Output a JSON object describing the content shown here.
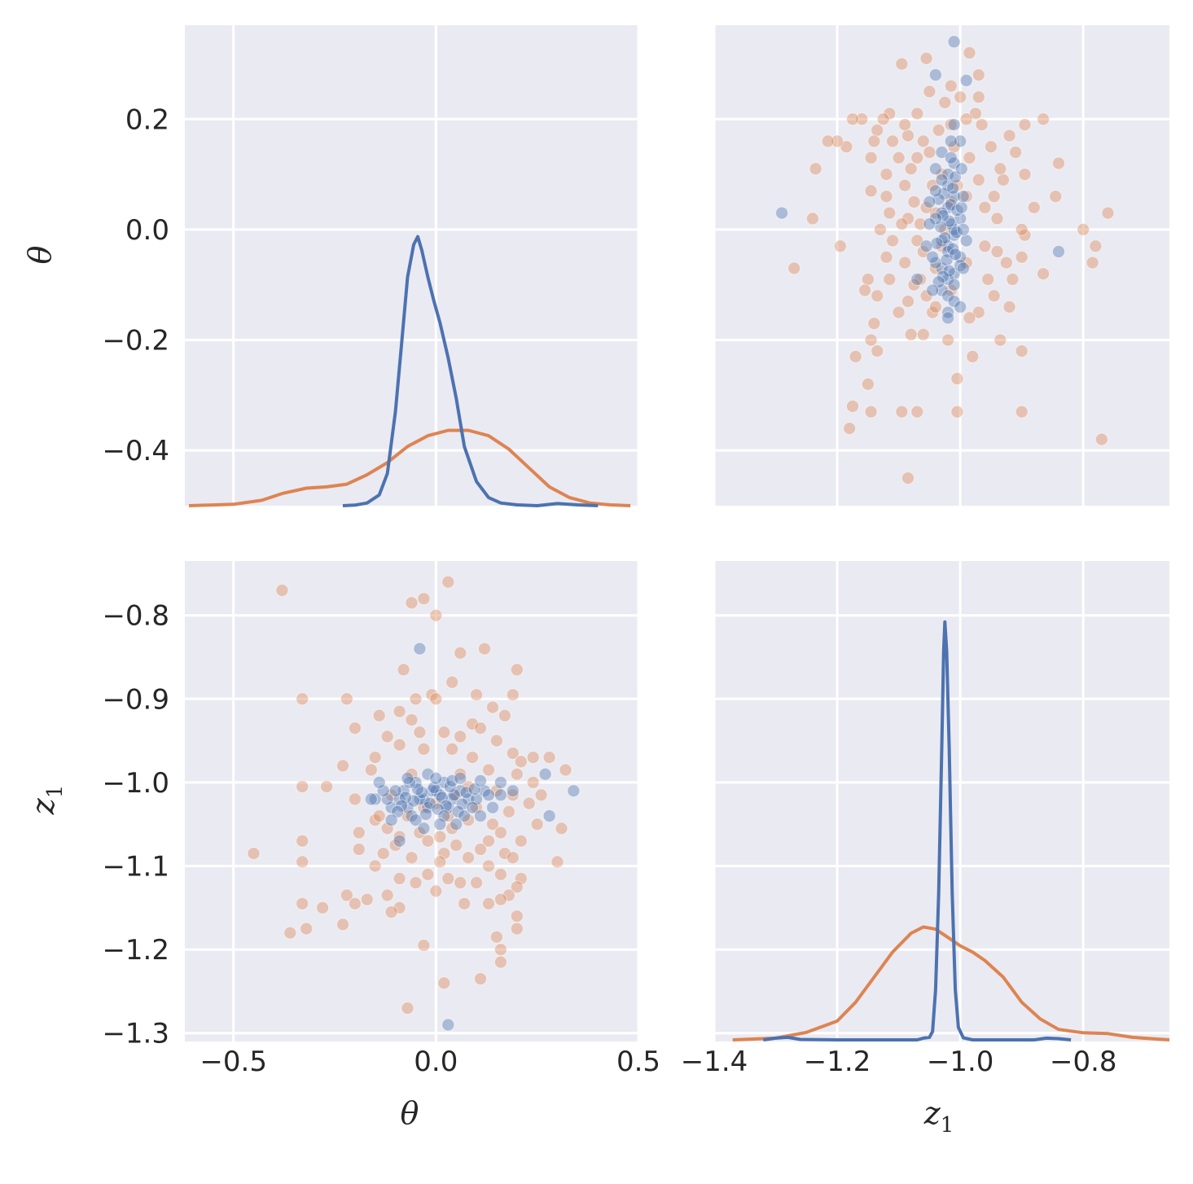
{
  "chart_data": {
    "type": "pairplot",
    "variables": [
      "θ",
      "z1"
    ],
    "axis_labels": {
      "theta": {
        "main": "θ",
        "sub": ""
      },
      "z1": {
        "main": "z",
        "sub": "1"
      }
    },
    "theta_ticks": [
      "−0.5",
      "0.0",
      "0.5"
    ],
    "theta_y_ticks": [
      "0.2",
      "0.0",
      "−0.2",
      "−0.4"
    ],
    "z1_ticks": [
      "−1.4",
      "−1.2",
      "−1.0",
      "−0.8"
    ],
    "z1_y_ticks": [
      "−0.8",
      "−0.9",
      "−1.0",
      "−1.1",
      "−1.2",
      "−1.3"
    ],
    "ranges": {
      "theta": [
        -0.62,
        0.5
      ],
      "theta_y": [
        -0.5,
        0.37
      ],
      "z1": [
        -1.4,
        -0.66
      ],
      "z1_y": [
        -1.31,
        -0.735
      ]
    },
    "grid": true,
    "colors": {
      "series_blue": "#4c72b0",
      "series_orange": "#dd8452",
      "background": "#eaeaf2"
    },
    "kde_theta": {
      "blue": [
        [
          -0.23,
          0
        ],
        [
          -0.2,
          0.002
        ],
        [
          -0.17,
          0.01
        ],
        [
          -0.14,
          0.04
        ],
        [
          -0.12,
          0.12
        ],
        [
          -0.1,
          0.35
        ],
        [
          -0.085,
          0.6
        ],
        [
          -0.07,
          0.85
        ],
        [
          -0.055,
          0.97
        ],
        [
          -0.045,
          1.0
        ],
        [
          -0.035,
          0.95
        ],
        [
          -0.02,
          0.85
        ],
        [
          -0.005,
          0.76
        ],
        [
          0.01,
          0.68
        ],
        [
          0.03,
          0.55
        ],
        [
          0.05,
          0.4
        ],
        [
          0.07,
          0.22
        ],
        [
          0.1,
          0.09
        ],
        [
          0.13,
          0.03
        ],
        [
          0.16,
          0.01
        ],
        [
          0.2,
          0.003
        ],
        [
          0.25,
          0
        ],
        [
          0.3,
          0.008
        ],
        [
          0.35,
          0.003
        ],
        [
          0.4,
          0
        ]
      ],
      "orange": [
        [
          -0.61,
          0
        ],
        [
          -0.5,
          0.005
        ],
        [
          -0.43,
          0.02
        ],
        [
          -0.38,
          0.045
        ],
        [
          -0.32,
          0.065
        ],
        [
          -0.27,
          0.07
        ],
        [
          -0.22,
          0.08
        ],
        [
          -0.17,
          0.115
        ],
        [
          -0.12,
          0.16
        ],
        [
          -0.07,
          0.22
        ],
        [
          -0.02,
          0.26
        ],
        [
          0.03,
          0.28
        ],
        [
          0.08,
          0.28
        ],
        [
          0.13,
          0.26
        ],
        [
          0.18,
          0.21
        ],
        [
          0.23,
          0.14
        ],
        [
          0.28,
          0.07
        ],
        [
          0.33,
          0.03
        ],
        [
          0.38,
          0.01
        ],
        [
          0.43,
          0.003
        ],
        [
          0.48,
          0
        ]
      ]
    },
    "kde_z1": {
      "blue": [
        [
          -1.32,
          0
        ],
        [
          -1.3,
          0.004
        ],
        [
          -1.28,
          0.006
        ],
        [
          -1.26,
          0.001
        ],
        [
          -1.2,
          0
        ],
        [
          -1.07,
          0
        ],
        [
          -1.06,
          0.004
        ],
        [
          -1.05,
          0.006
        ],
        [
          -1.045,
          0.02
        ],
        [
          -1.04,
          0.12
        ],
        [
          -1.035,
          0.35
        ],
        [
          -1.03,
          0.7
        ],
        [
          -1.027,
          0.93
        ],
        [
          -1.025,
          1.0
        ],
        [
          -1.022,
          0.93
        ],
        [
          -1.018,
          0.7
        ],
        [
          -1.013,
          0.35
        ],
        [
          -1.008,
          0.12
        ],
        [
          -1.003,
          0.03
        ],
        [
          -0.995,
          0.005
        ],
        [
          -0.98,
          0
        ],
        [
          -0.88,
          0
        ],
        [
          -0.86,
          0.004
        ],
        [
          -0.84,
          0.003
        ],
        [
          -0.82,
          0
        ]
      ],
      "orange": [
        [
          -1.37,
          0
        ],
        [
          -1.3,
          0.004
        ],
        [
          -1.25,
          0.018
        ],
        [
          -1.2,
          0.045
        ],
        [
          -1.17,
          0.09
        ],
        [
          -1.14,
          0.15
        ],
        [
          -1.11,
          0.21
        ],
        [
          -1.08,
          0.255
        ],
        [
          -1.06,
          0.27
        ],
        [
          -1.04,
          0.265
        ],
        [
          -1.02,
          0.245
        ],
        [
          -1.0,
          0.225
        ],
        [
          -0.98,
          0.21
        ],
        [
          -0.96,
          0.19
        ],
        [
          -0.93,
          0.15
        ],
        [
          -0.9,
          0.09
        ],
        [
          -0.87,
          0.05
        ],
        [
          -0.84,
          0.025
        ],
        [
          -0.8,
          0.017
        ],
        [
          -0.76,
          0.015
        ],
        [
          -0.72,
          0.006
        ],
        [
          -0.68,
          0.002
        ],
        [
          -0.66,
          0
        ]
      ]
    },
    "points_blue": [
      [
        -0.05,
        -1.0
      ],
      [
        -0.07,
        -1.03
      ],
      [
        -0.03,
        -1.02
      ],
      [
        -0.01,
        -1.01
      ],
      [
        0.02,
        -1.0
      ],
      [
        0.04,
        -1.02
      ],
      [
        -0.02,
        -1.03
      ],
      [
        0.0,
        -1.01
      ],
      [
        0.01,
        -1.015
      ],
      [
        -0.04,
        -1.02
      ],
      [
        -0.08,
        -1.01
      ],
      [
        -0.06,
        -1.04
      ],
      [
        0.03,
        -1.03
      ],
      [
        0.06,
        -1.01
      ],
      [
        -0.09,
        -1.02
      ],
      [
        0.08,
        -1.02
      ],
      [
        -0.1,
        -1.01
      ],
      [
        0.1,
        -1.02
      ],
      [
        -0.11,
        -1.03
      ],
      [
        0.12,
        -1.01
      ],
      [
        -0.12,
        -1.02
      ],
      [
        -0.015,
        -1.025
      ],
      [
        0.015,
        -1.018
      ],
      [
        -0.035,
        -1.012
      ],
      [
        0.025,
        -1.028
      ],
      [
        -0.055,
        -1.022
      ],
      [
        0.045,
        -1.015
      ],
      [
        -0.075,
        -1.018
      ],
      [
        0.065,
        -1.026
      ],
      [
        -0.025,
        -1.038
      ],
      [
        0.035,
        -1.005
      ],
      [
        -0.045,
        -1.008
      ],
      [
        0.055,
        -1.035
      ],
      [
        0.005,
        -1.032
      ],
      [
        -0.005,
        -1.006
      ],
      [
        0.075,
        -1.012
      ],
      [
        -0.085,
        -1.028
      ],
      [
        0.095,
        -1.008
      ],
      [
        -0.095,
        -1.035
      ],
      [
        0.02,
        -1.04
      ],
      [
        -0.065,
        -1.0
      ],
      [
        0.11,
        -0.998
      ],
      [
        -0.13,
        -1.01
      ],
      [
        0.14,
        -1.03
      ],
      [
        -0.14,
        -1.0
      ],
      [
        0.16,
        -1.0
      ],
      [
        -0.02,
        -0.99
      ],
      [
        0.0,
        -0.995
      ],
      [
        0.04,
        -0.998
      ],
      [
        -0.05,
        -1.045
      ],
      [
        0.07,
        -1.04
      ],
      [
        0.13,
        -1.015
      ],
      [
        -0.11,
        -1.045
      ],
      [
        0.09,
        -1.03
      ],
      [
        0.01,
        -1.05
      ],
      [
        -0.04,
        -0.84
      ],
      [
        0.34,
        -1.01
      ],
      [
        0.28,
        -1.04
      ],
      [
        0.03,
        -1.29
      ],
      [
        0.27,
        -0.99
      ],
      [
        -0.09,
        -1.07
      ],
      [
        0.16,
        -1.015
      ],
      [
        -0.15,
        -1.02
      ],
      [
        0.06,
        -0.995
      ],
      [
        -0.07,
        -0.995
      ],
      [
        0.11,
        -1.04
      ],
      [
        0.19,
        -1.01
      ],
      [
        -0.16,
        -1.02
      ],
      [
        0.05,
        -1.05
      ],
      [
        -0.03,
        -1.055
      ]
    ],
    "points_orange": [
      [
        -0.38,
        -0.77
      ],
      [
        0.03,
        -0.76
      ],
      [
        -0.06,
        -0.785
      ],
      [
        -0.03,
        -0.78
      ],
      [
        0.0,
        -0.8
      ],
      [
        0.12,
        -0.84
      ],
      [
        0.06,
        -0.845
      ],
      [
        -0.08,
        -0.865
      ],
      [
        0.2,
        -0.865
      ],
      [
        0.04,
        -0.88
      ],
      [
        -0.33,
        -0.9
      ],
      [
        -0.22,
        -0.9
      ],
      [
        -0.05,
        -0.9
      ],
      [
        0.1,
        -0.895
      ],
      [
        0.19,
        -0.895
      ],
      [
        -0.01,
        -0.895
      ],
      [
        0.0,
        -0.9
      ],
      [
        -0.09,
        -0.915
      ],
      [
        -0.14,
        -0.92
      ],
      [
        -0.06,
        -0.925
      ],
      [
        0.14,
        -0.91
      ],
      [
        0.17,
        -0.92
      ],
      [
        -0.04,
        -0.94
      ],
      [
        0.02,
        -0.94
      ],
      [
        0.09,
        -0.93
      ],
      [
        0.11,
        -0.935
      ],
      [
        -0.2,
        -0.935
      ],
      [
        0.06,
        -0.945
      ],
      [
        -0.12,
        -0.945
      ],
      [
        0.15,
        -0.95
      ],
      [
        -0.09,
        -0.955
      ],
      [
        0.04,
        -0.96
      ],
      [
        -0.03,
        -0.96
      ],
      [
        0.09,
        -0.97
      ],
      [
        0.19,
        -0.965
      ],
      [
        0.24,
        -0.97
      ],
      [
        0.28,
        -0.97
      ],
      [
        -0.15,
        -0.97
      ],
      [
        0.21,
        -0.975
      ],
      [
        -0.23,
        -0.98
      ],
      [
        -0.16,
        -0.985
      ],
      [
        0.13,
        -0.985
      ],
      [
        0.32,
        -0.985
      ],
      [
        0.06,
        -0.99
      ],
      [
        -0.06,
        -0.99
      ],
      [
        0.2,
        -0.99
      ],
      [
        0.24,
        -1.0
      ],
      [
        0.08,
        -1.005
      ],
      [
        -0.33,
        -1.005
      ],
      [
        -0.27,
        -1.005
      ],
      [
        0.15,
        -1.01
      ],
      [
        0.19,
        -1.015
      ],
      [
        -0.11,
        -1.015
      ],
      [
        0.05,
        -1.015
      ],
      [
        -0.2,
        -1.02
      ],
      [
        0.0,
        -1.025
      ],
      [
        -0.03,
        -1.03
      ],
      [
        0.1,
        -1.03
      ],
      [
        0.18,
        -1.035
      ],
      [
        -0.07,
        -1.04
      ],
      [
        0.03,
        -1.04
      ],
      [
        -0.15,
        -1.045
      ],
      [
        0.08,
        -1.045
      ],
      [
        0.14,
        -1.05
      ],
      [
        0.25,
        -1.05
      ],
      [
        -0.12,
        -1.055
      ],
      [
        0.31,
        -1.055
      ],
      [
        0.04,
        -1.055
      ],
      [
        -0.04,
        -1.06
      ],
      [
        -0.19,
        -1.06
      ],
      [
        0.16,
        -1.06
      ],
      [
        -0.09,
        -1.065
      ],
      [
        0.01,
        -1.065
      ],
      [
        -0.02,
        -1.07
      ],
      [
        0.13,
        -1.07
      ],
      [
        -0.33,
        -1.07
      ],
      [
        0.21,
        -1.07
      ],
      [
        -0.1,
        -1.075
      ],
      [
        0.05,
        -1.075
      ],
      [
        -0.19,
        -1.08
      ],
      [
        0.11,
        -1.08
      ],
      [
        0.17,
        -1.085
      ],
      [
        -0.45,
        -1.085
      ],
      [
        -0.13,
        -1.085
      ],
      [
        0.02,
        -1.085
      ],
      [
        0.08,
        -1.09
      ],
      [
        -0.06,
        -1.09
      ],
      [
        0.19,
        -1.09
      ],
      [
        0.01,
        -1.095
      ],
      [
        -0.33,
        -1.095
      ],
      [
        0.3,
        -1.095
      ],
      [
        -0.15,
        -1.1
      ],
      [
        0.13,
        -1.1
      ],
      [
        -0.02,
        -1.11
      ],
      [
        0.16,
        -1.11
      ],
      [
        -0.09,
        -1.115
      ],
      [
        0.03,
        -1.115
      ],
      [
        0.21,
        -1.115
      ],
      [
        -0.05,
        -1.12
      ],
      [
        0.06,
        -1.12
      ],
      [
        0.1,
        -1.12
      ],
      [
        0.2,
        -1.125
      ],
      [
        0.0,
        -1.13
      ],
      [
        -0.12,
        -1.135
      ],
      [
        -0.22,
        -1.135
      ],
      [
        0.18,
        -1.135
      ],
      [
        -0.17,
        -1.14
      ],
      [
        0.16,
        -1.14
      ],
      [
        -0.2,
        -1.145
      ],
      [
        0.07,
        -1.145
      ],
      [
        -0.33,
        -1.145
      ],
      [
        -0.09,
        -1.15
      ],
      [
        0.13,
        -1.145
      ],
      [
        -0.28,
        -1.15
      ],
      [
        -0.11,
        -1.155
      ],
      [
        0.2,
        -1.16
      ],
      [
        -0.32,
        -1.175
      ],
      [
        -0.23,
        -1.17
      ],
      [
        0.2,
        -1.175
      ],
      [
        0.15,
        -1.185
      ],
      [
        -0.36,
        -1.18
      ],
      [
        0.16,
        -1.2
      ],
      [
        0.16,
        -1.215
      ],
      [
        -0.03,
        -1.195
      ],
      [
        0.11,
        -1.235
      ],
      [
        0.02,
        -1.24
      ],
      [
        -0.07,
        -1.27
      ],
      [
        0.26,
        -1.015
      ],
      [
        -0.14,
        -1.04
      ],
      [
        0.23,
        -1.025
      ]
    ]
  }
}
